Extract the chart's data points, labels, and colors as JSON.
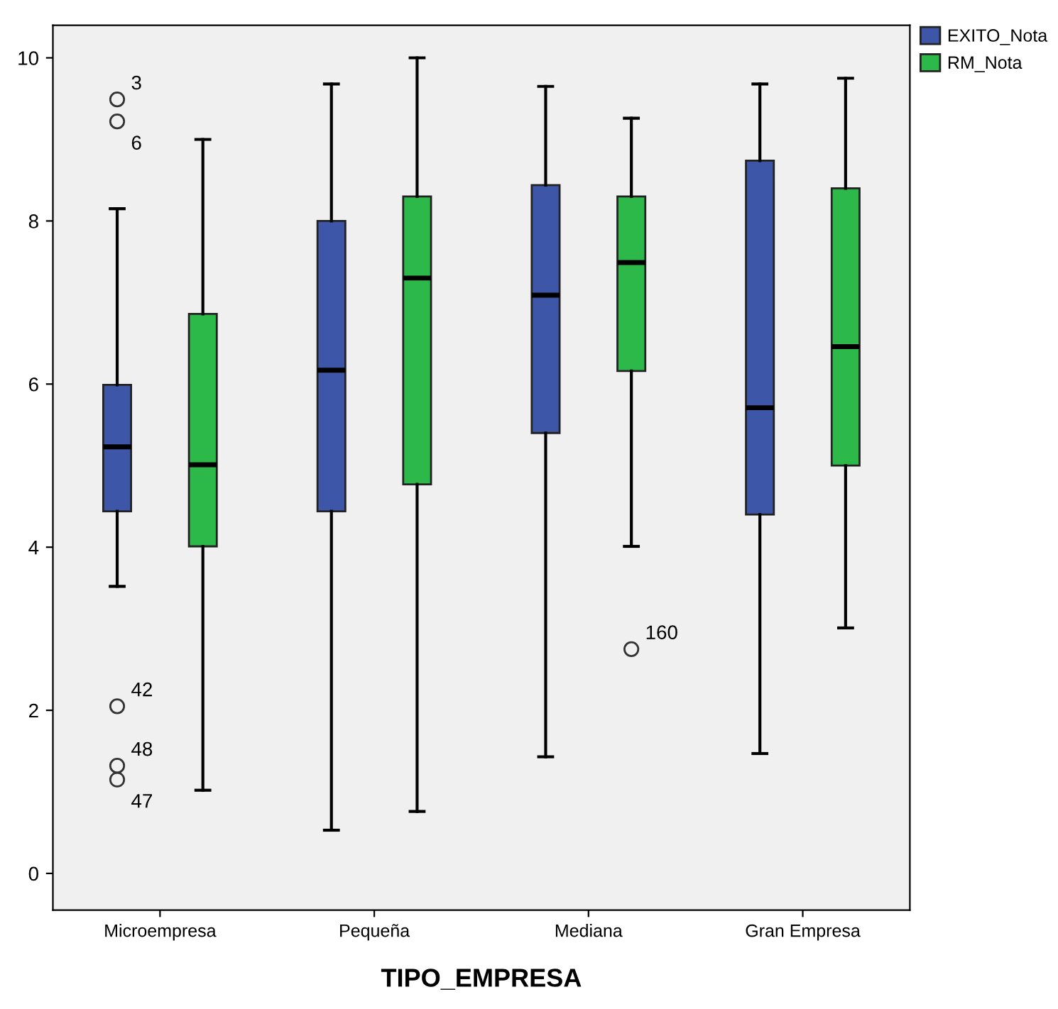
{
  "chart_data": {
    "type": "box",
    "xlabel": "TIPO_EMPRESA",
    "categories": [
      "Microempresa",
      "Pequeña",
      "Mediana",
      "Gran Empresa"
    ],
    "series": [
      {
        "name": "EXITO_Nota",
        "color": "#3e56a8",
        "boxes": [
          {
            "low": 3.52,
            "q1": 4.44,
            "median": 5.23,
            "q3": 5.99,
            "high": 8.15,
            "outliers": [
              9.49,
              9.22,
              2.05,
              1.32,
              1.15
            ]
          },
          {
            "low": 0.53,
            "q1": 4.44,
            "median": 6.17,
            "q3": 8.0,
            "high": 9.68
          },
          {
            "low": 1.43,
            "q1": 5.4,
            "median": 7.09,
            "q3": 8.44,
            "high": 9.65
          },
          {
            "low": 1.47,
            "q1": 4.4,
            "median": 5.71,
            "q3": 8.74,
            "high": 9.68
          }
        ]
      },
      {
        "name": "RM_Nota",
        "color": "#2db84a",
        "boxes": [
          {
            "low": 1.02,
            "q1": 4.01,
            "median": 5.01,
            "q3": 6.86,
            "high": 9.0
          },
          {
            "low": 0.76,
            "q1": 4.77,
            "median": 7.3,
            "q3": 8.3,
            "high": 10.0
          },
          {
            "low": 4.01,
            "q1": 6.16,
            "median": 7.49,
            "q3": 8.3,
            "high": 9.26,
            "outliers": [
              2.75
            ]
          },
          {
            "low": 3.01,
            "q1": 5.0,
            "median": 6.46,
            "q3": 8.4,
            "high": 9.75
          }
        ]
      }
    ],
    "annotations": [
      "3",
      "6",
      "42",
      "48",
      "47",
      "160"
    ],
    "ylim": [
      -0.45,
      10.4
    ],
    "yticks": [
      0,
      2,
      4,
      6,
      8,
      10
    ],
    "grid": false,
    "legend": "top right"
  }
}
